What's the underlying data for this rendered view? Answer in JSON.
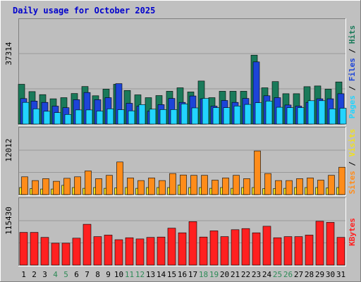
{
  "title": "Daily usage for October 2025",
  "colors": {
    "background": "#c0c0c0",
    "plot": "#bebebe",
    "title": "#0000cc",
    "hits": "#1a7a5a",
    "files": "#1d44d8",
    "pages": "#22d4ff",
    "visits": "#f0e020",
    "sites": "#ff8c1a",
    "kbytes": "#ff2020",
    "weekend": "#2e8b57",
    "weekday": "#000000"
  },
  "days": [
    "1",
    "2",
    "3",
    "4",
    "5",
    "6",
    "7",
    "8",
    "9",
    "10",
    "11",
    "12",
    "13",
    "14",
    "15",
    "16",
    "17",
    "18",
    "19",
    "20",
    "21",
    "22",
    "23",
    "24",
    "25",
    "26",
    "27",
    "28",
    "29",
    "30",
    "31"
  ],
  "weekend_days": [
    "4",
    "5",
    "11",
    "12",
    "18",
    "19",
    "25",
    "26"
  ],
  "chart_data": [
    {
      "type": "bar",
      "panel": "top",
      "tick_label": "37314",
      "ylim": [
        0,
        37314
      ],
      "legend": [
        {
          "text": "Pages",
          "color": "#22d4ff"
        },
        {
          "text": " / ",
          "color": "#000000"
        },
        {
          "text": "Files",
          "color": "#1d44d8"
        },
        {
          "text": " / ",
          "color": "#000000"
        },
        {
          "text": "Hits",
          "color": "#1a7a5a"
        }
      ],
      "series": [
        {
          "name": "Hits",
          "color": "#1a7a5a",
          "values": [
            21100,
            17200,
            15600,
            13400,
            14000,
            16200,
            19900,
            15000,
            18500,
            21100,
            17800,
            15500,
            14000,
            15100,
            17400,
            19200,
            17000,
            22800,
            14000,
            17400,
            17400,
            17400,
            36500,
            19200,
            22500,
            16100,
            16100,
            19800,
            20200,
            18500,
            22300
          ]
        },
        {
          "name": "Files",
          "color": "#1d44d8",
          "values": [
            13500,
            12200,
            11500,
            9500,
            8700,
            12900,
            16700,
            12900,
            14000,
            21400,
            11000,
            9500,
            6800,
            10300,
            13600,
            11500,
            14900,
            13400,
            9500,
            12500,
            11500,
            13600,
            32900,
            15000,
            14000,
            10100,
            9500,
            11500,
            13400,
            13400,
            16100
          ]
        },
        {
          "name": "Pages",
          "color": "#22d4ff",
          "values": [
            11500,
            8100,
            6800,
            6100,
            5100,
            7500,
            7500,
            6900,
            8100,
            7600,
            7000,
            10300,
            7900,
            7700,
            7700,
            10700,
            8600,
            13600,
            8700,
            8700,
            9600,
            10400,
            11300,
            12200,
            8900,
            8700,
            8700,
            12400,
            12400,
            8100,
            8400
          ]
        }
      ]
    },
    {
      "type": "bar",
      "panel": "middle",
      "tick_label": "12012",
      "ylim": [
        0,
        12012
      ],
      "legend": [
        {
          "text": "Sites",
          "color": "#ff8c1a"
        },
        {
          "text": " / ",
          "color": "#000000"
        },
        {
          "text": "Visits",
          "color": "#f0e020"
        }
      ],
      "series": [
        {
          "name": "Visits",
          "color": "#f0e020",
          "values": [
            1900,
            1600,
            1500,
            1500,
            2500,
            1900,
            1700,
            1900,
            1700,
            1800,
            1900,
            1700,
            1900,
            1900,
            1900,
            2600,
            1900,
            1900,
            1700,
            1900,
            1700,
            1900,
            1900,
            1600,
            1600,
            1700,
            1900,
            1900,
            1900,
            1800,
            1900
          ]
        },
        {
          "name": "Sites",
          "color": "#ff8c1a",
          "values": [
            4800,
            3800,
            4300,
            3600,
            4400,
            4800,
            6400,
            4300,
            5200,
            8800,
            4500,
            3800,
            4500,
            3800,
            5700,
            5300,
            5200,
            5200,
            3900,
            4500,
            5200,
            4300,
            11800,
            5700,
            3800,
            3800,
            4300,
            4500,
            3900,
            5200,
            7400
          ]
        }
      ]
    },
    {
      "type": "bar",
      "panel": "bottom",
      "tick_label": "115430",
      "ylim": [
        0,
        115430
      ],
      "legend": [
        {
          "text": "KBytes",
          "color": "#ff2020"
        }
      ],
      "series": [
        {
          "name": "KBytes",
          "color": "#ff2020",
          "values": [
            85000,
            85000,
            72000,
            57000,
            57000,
            70000,
            106000,
            74000,
            78000,
            66000,
            71000,
            68000,
            72000,
            73000,
            96000,
            84000,
            113000,
            73000,
            89000,
            74000,
            92000,
            95000,
            84000,
            101000,
            71000,
            74000,
            74000,
            78000,
            114000,
            111000,
            72000
          ]
        }
      ]
    }
  ]
}
